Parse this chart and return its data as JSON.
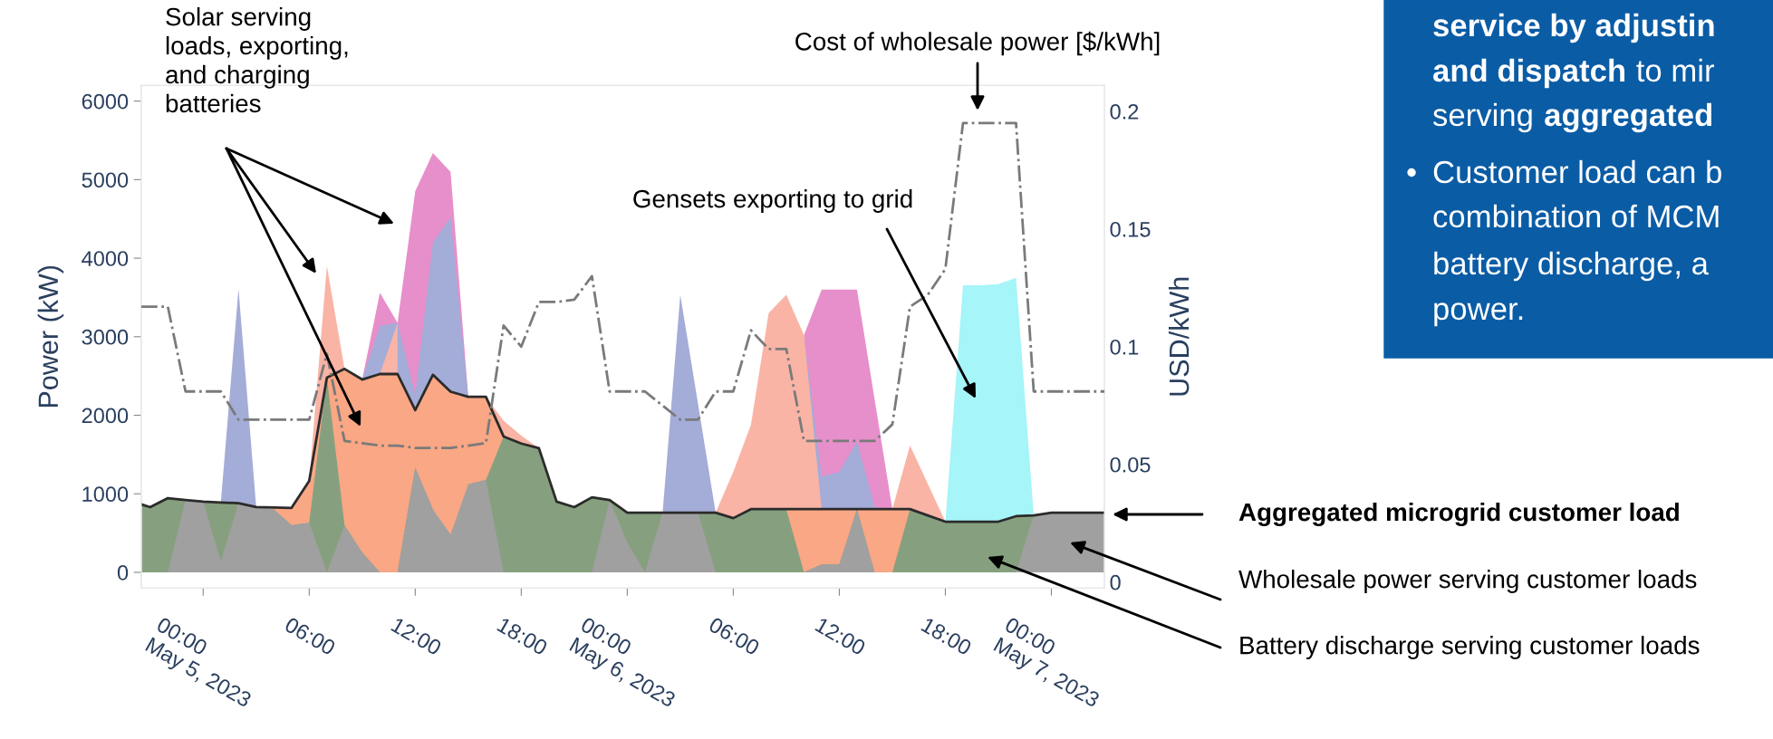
{
  "chart_data": [
    {
      "type": "area",
      "ylabel": "Power (kW)",
      "y2label": "USD/kWh",
      "x": [
        "2023-05-04T20:30",
        "2023-05-04T21:00",
        "2023-05-04T22:00",
        "2023-05-04T23:00",
        "2023-05-05T00:00",
        "2023-05-05T01:00",
        "2023-05-05T02:00",
        "2023-05-05T03:00",
        "2023-05-05T04:00",
        "2023-05-05T05:00",
        "2023-05-05T06:00",
        "2023-05-05T07:00",
        "2023-05-05T08:00",
        "2023-05-05T09:00",
        "2023-05-05T10:00",
        "2023-05-05T11:00",
        "2023-05-05T12:00",
        "2023-05-05T13:00",
        "2023-05-05T14:00",
        "2023-05-05T15:00",
        "2023-05-05T16:00",
        "2023-05-05T17:00",
        "2023-05-05T18:00",
        "2023-05-05T19:00",
        "2023-05-05T20:00",
        "2023-05-05T21:00",
        "2023-05-05T22:00",
        "2023-05-05T23:00",
        "2023-05-06T00:00",
        "2023-05-06T01:00",
        "2023-05-06T02:00",
        "2023-05-06T03:00",
        "2023-05-06T04:00",
        "2023-05-06T05:00",
        "2023-05-06T06:00",
        "2023-05-06T07:00",
        "2023-05-06T08:00",
        "2023-05-06T09:00",
        "2023-05-06T10:00",
        "2023-05-06T11:00",
        "2023-05-06T12:00",
        "2023-05-06T13:00",
        "2023-05-06T14:00",
        "2023-05-06T15:00",
        "2023-05-06T16:00",
        "2023-05-06T17:00",
        "2023-05-06T18:00",
        "2023-05-06T19:00",
        "2023-05-06T20:00",
        "2023-05-06T21:00",
        "2023-05-06T22:00",
        "2023-05-06T23:00",
        "2023-05-07T00:00",
        "2023-05-07T01:00",
        "2023-05-07T02:00",
        "2023-05-07T03:00"
      ],
      "xlim": [
        "2023-05-04T20:30",
        "2023-05-07T03:00"
      ],
      "xticks": [
        {
          "value": "2023-05-05T00:00",
          "label": "00:00\nMay 5, 2023"
        },
        {
          "value": "2023-05-05T06:00",
          "label": "06:00"
        },
        {
          "value": "2023-05-05T12:00",
          "label": "12:00"
        },
        {
          "value": "2023-05-05T18:00",
          "label": "18:00"
        },
        {
          "value": "2023-05-06T00:00",
          "label": "00:00\nMay 6, 2023"
        },
        {
          "value": "2023-05-06T06:00",
          "label": "06:00"
        },
        {
          "value": "2023-05-06T12:00",
          "label": "12:00"
        },
        {
          "value": "2023-05-06T18:00",
          "label": "18:00"
        },
        {
          "value": "2023-05-07T00:00",
          "label": "00:00\nMay 7, 2023"
        }
      ],
      "ylim": [
        -200,
        6200
      ],
      "yticks": [
        0,
        1000,
        2000,
        3000,
        4000,
        5000,
        6000
      ],
      "y2lim": [
        -0.0025,
        0.211
      ],
      "y2ticks": [
        0,
        0.05,
        0.1,
        0.15,
        0.2
      ],
      "series": [
        {
          "type": "area",
          "color": "#a6f5f8",
          "values": [
            null,
            null,
            null,
            null,
            null,
            null,
            null,
            null,
            null,
            null,
            null,
            null,
            null,
            null,
            null,
            null,
            null,
            null,
            null,
            null,
            null,
            null,
            null,
            null,
            null,
            null,
            null,
            null,
            null,
            null,
            null,
            null,
            null,
            null,
            null,
            null,
            null,
            null,
            null,
            null,
            null,
            null,
            null,
            null,
            null,
            null,
            645,
            3655,
            3655,
            3670,
            3750,
            725,
            null,
            null,
            null,
            null
          ]
        },
        {
          "type": "area",
          "color": "#e78fcb",
          "values": [
            null,
            null,
            null,
            null,
            null,
            null,
            null,
            null,
            null,
            null,
            null,
            null,
            null,
            2455,
            3560,
            3175,
            4850,
            5340,
            5100,
            2235,
            null,
            null,
            null,
            null,
            null,
            null,
            null,
            null,
            null,
            null,
            null,
            null,
            null,
            null,
            null,
            null,
            null,
            null,
            3020,
            3600,
            3600,
            3600,
            2200,
            805,
            null,
            null,
            null,
            null,
            null,
            null,
            null,
            null,
            null,
            null,
            null,
            null
          ]
        },
        {
          "type": "area",
          "color": "#a4acd8",
          "values": [
            null,
            null,
            null,
            null,
            null,
            890,
            3610,
            830,
            null,
            null,
            null,
            null,
            null,
            2455,
            3140,
            3175,
            2265,
            4200,
            4520,
            2235,
            null,
            null,
            null,
            null,
            null,
            null,
            null,
            null,
            null,
            null,
            760,
            3535,
            2150,
            760,
            null,
            null,
            null,
            null,
            3020,
            1220,
            1280,
            1670,
            830,
            805,
            null,
            null,
            null,
            null,
            null,
            null,
            null,
            null,
            null,
            null,
            null,
            null
          ]
        },
        {
          "type": "area",
          "color": "#f9b4a6",
          "values": [
            null,
            null,
            null,
            null,
            null,
            null,
            null,
            null,
            null,
            null,
            1165,
            3900,
            2590,
            null,
            2525,
            3175,
            null,
            null,
            null,
            null,
            2235,
            1930,
            1740,
            1580,
            null,
            null,
            null,
            null,
            null,
            null,
            null,
            null,
            null,
            760,
            1280,
            1880,
            3300,
            3535,
            3020,
            805,
            null,
            null,
            null,
            805,
            1615,
            1130,
            645,
            null,
            null,
            null,
            null,
            null,
            null,
            null,
            null,
            null
          ]
        },
        {
          "type": "area",
          "color": "#f9a784",
          "values": [
            null,
            null,
            null,
            null,
            null,
            null,
            null,
            830,
            825,
            820,
            1165,
            2480,
            2590,
            2455,
            2525,
            2525,
            2065,
            2515,
            2300,
            2235,
            2235,
            1730,
            null,
            null,
            null,
            null,
            null,
            null,
            null,
            null,
            null,
            null,
            null,
            null,
            null,
            null,
            null,
            805,
            805,
            805,
            805,
            805,
            805,
            805,
            805,
            null,
            null,
            null,
            null,
            null,
            null,
            null,
            null,
            null,
            null,
            null
          ]
        },
        {
          "type": "area",
          "color": "#86a07f",
          "values": [
            865,
            830,
            945,
            920,
            900,
            890,
            880,
            830,
            800,
            600,
            630,
            2480,
            600,
            250,
            0,
            0,
            1330,
            800,
            null,
            1120,
            1175,
            1730,
            1640,
            1580,
            900,
            830,
            955,
            920,
            760,
            760,
            760,
            760,
            760,
            760,
            690,
            805,
            805,
            805,
            0,
            100,
            100,
            805,
            0,
            0,
            805,
            725,
            645,
            645,
            645,
            645,
            715,
            725,
            760,
            760,
            760,
            760
          ]
        },
        {
          "type": "area",
          "color": "#a0a0a0",
          "values": [
            0,
            0,
            0,
            920,
            900,
            140,
            880,
            830,
            800,
            600,
            630,
            0,
            600,
            250,
            0,
            0,
            1330,
            800,
            485,
            1120,
            1175,
            0,
            0,
            0,
            0,
            0,
            0,
            920,
            380,
            0,
            760,
            760,
            760,
            0,
            0,
            0,
            0,
            0,
            0,
            100,
            100,
            805,
            0,
            0,
            0,
            0,
            0,
            0,
            0,
            0,
            0,
            725,
            760,
            760,
            760,
            760
          ]
        },
        {
          "type": "line",
          "color": "#2b2b2b",
          "line_style": "solid",
          "values": [
            865,
            830,
            945,
            920,
            900,
            890,
            880,
            830,
            825,
            820,
            1165,
            2480,
            2590,
            2455,
            2525,
            2525,
            2065,
            2515,
            2300,
            2235,
            2235,
            1730,
            1640,
            1580,
            900,
            830,
            955,
            920,
            760,
            760,
            760,
            760,
            760,
            760,
            690,
            805,
            805,
            805,
            805,
            805,
            805,
            805,
            805,
            805,
            805,
            725,
            645,
            645,
            645,
            645,
            715,
            725,
            760,
            760,
            760,
            760
          ]
        },
        {
          "type": "line",
          "axis": "y2",
          "color": "#7a7a7a",
          "line_style": "dashdot",
          "values": [
            0.117,
            0.117,
            0.117,
            0.081,
            0.081,
            0.081,
            0.069,
            0.069,
            0.069,
            0.069,
            0.069,
            0.097,
            0.06,
            0.059,
            0.058,
            0.058,
            0.057,
            0.057,
            0.057,
            0.058,
            0.059,
            0.109,
            0.1,
            0.119,
            0.119,
            0.12,
            0.13,
            0.081,
            0.081,
            0.081,
            0.075,
            0.069,
            0.069,
            0.081,
            0.081,
            0.107,
            0.099,
            0.099,
            0.06,
            0.06,
            0.06,
            0.06,
            0.06,
            0.067,
            0.117,
            0.122,
            0.133,
            0.195,
            0.195,
            0.195,
            0.195,
            0.081,
            0.081,
            0.081,
            0.081,
            0.081
          ]
        }
      ],
      "annotations": [
        "Solar serving\nloads, exporting,\nand charging\nbatteries",
        "Cost of wholesale power [$/kWh]",
        "Gensets exporting to grid",
        "Aggregated microgrid customer load",
        "Wholesale power serving customer loads",
        "Battery discharge serving customer loads"
      ]
    },
    {
      "type": "other",
      "color": "#0a5ca5",
      "annotations": [
        "service by adjustin",
        "and dispatch",
        "to mir",
        "serving",
        "aggregated",
        "•",
        "Customer load can b",
        "combination of MCM",
        "battery discharge, a",
        "power."
      ]
    }
  ]
}
